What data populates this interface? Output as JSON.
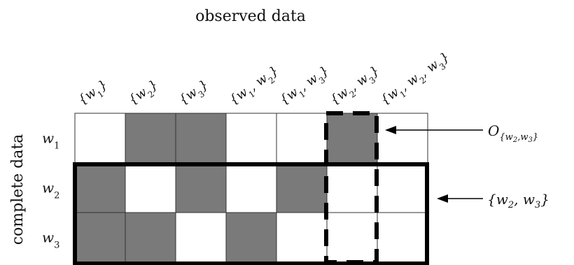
{
  "title": "observed data",
  "side_label": "complete data",
  "columns": [
    "{w1}",
    "{w2}",
    "{w3}",
    "{w1, w2}",
    "{w1, w3}",
    "{w2, w3}",
    "{w1, w2, w3}"
  ],
  "rows": [
    "w1",
    "w2",
    "w3"
  ],
  "cells": [
    [
      false,
      true,
      true,
      false,
      false,
      true,
      false
    ],
    [
      true,
      false,
      true,
      false,
      true,
      false,
      false
    ],
    [
      true,
      true,
      false,
      true,
      false,
      false,
      false
    ]
  ],
  "annotations": {
    "O_label": "O{w2,w3}",
    "set_label": "{w2, w3}"
  },
  "colors": {
    "filled": "#7a7a7a",
    "empty": "#ffffff",
    "grid": "#333333",
    "outline": "#000000"
  }
}
